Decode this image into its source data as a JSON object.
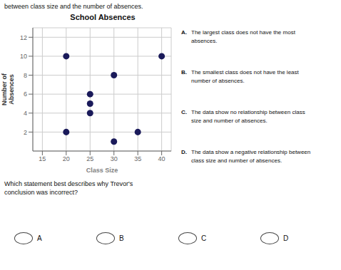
{
  "chart_data": {
    "type": "scatter",
    "title": "School Absences",
    "xlabel": "Class Size",
    "ylabel": "Number of\nAbsences",
    "x": [
      20,
      20,
      25,
      25,
      25,
      30,
      30,
      35,
      40
    ],
    "values": [
      10,
      2,
      4,
      6,
      5,
      8,
      1,
      2,
      10
    ],
    "color": "#1a1a5a",
    "xlim": [
      13,
      42
    ],
    "ylim": [
      0,
      13
    ],
    "xticks": [
      15,
      20,
      25,
      30,
      35,
      40
    ],
    "yticks": [
      2,
      4,
      6,
      8,
      10,
      12
    ],
    "grid": true,
    "annotations": [
      "between class size and the number of absences.",
      "A.",
      "The largest class does not have the most",
      "absences.",
      "B.",
      "The smallest class does not have the least",
      "number of absences.",
      "C.",
      "The data show no relationship between class",
      "size and number of absences.",
      "D.",
      "The data show a negative relationship between",
      "class size and number of absences.",
      "Which statement best describes why Trevor's\nconclusion was incorrect?",
      "A",
      "B",
      "C",
      "D"
    ]
  }
}
